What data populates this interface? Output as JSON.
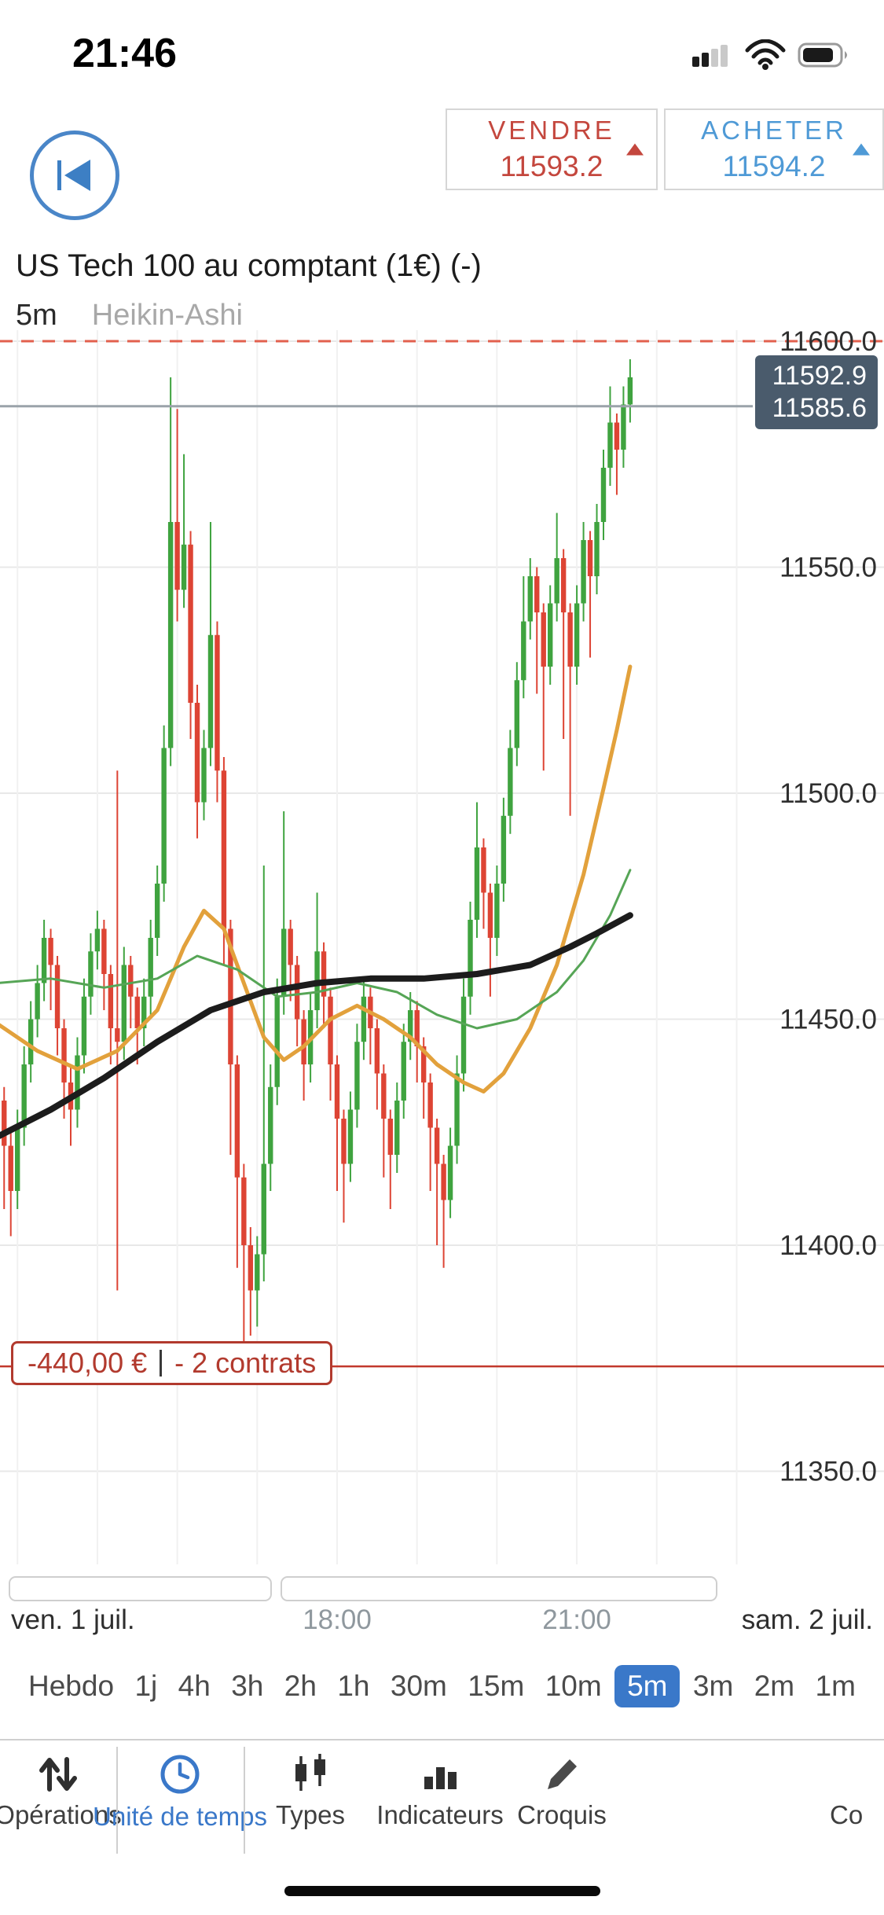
{
  "status_bar": {
    "time": "21:46",
    "icons": [
      "cellular-signal",
      "wifi",
      "battery"
    ]
  },
  "header": {
    "sell": {
      "label": "VENDRE",
      "price": "11593.2"
    },
    "buy": {
      "label": "ACHETER",
      "price": "11594.2"
    },
    "instrument_title": "US Tech 100 au comptant (1€) (-)",
    "interval_label": "5m",
    "chart_style_label": "Heikin-Ashi"
  },
  "chart_data": {
    "type": "candlestick",
    "style": "Heikin-Ashi",
    "interval": "5m",
    "start_hour": 13.75,
    "step_minutes": 5,
    "colors": {
      "up": "#3fa33f",
      "down": "#dd4434",
      "alert_line": "#e2604e",
      "current_line": "#9aa3aa",
      "position_line": "#c2392c"
    },
    "y_axis": {
      "min": 11350,
      "max": 11600,
      "step": 50,
      "ticks": [
        "11600.0",
        "11550.0",
        "11500.0",
        "11450.0",
        "11400.0",
        "11350.0"
      ]
    },
    "x_axis": {
      "labels": [
        {
          "text": "ven. 1 juil."
        },
        {
          "text": "18:00",
          "hour": 18
        },
        {
          "text": "21:00",
          "hour": 21
        },
        {
          "text": "sam. 2 juil."
        }
      ]
    },
    "lines": {
      "alert_level": 11600.0,
      "current_price": 11585.6,
      "position_level": 11373.2
    },
    "badge": [
      "11592.9",
      "11585.6"
    ],
    "position_label": {
      "pnl": "-440,00 €",
      "contracts": "- 2 contrats"
    },
    "candles": [
      [
        11442,
        11445,
        11418,
        11432
      ],
      [
        11432,
        11435,
        11408,
        11422
      ],
      [
        11422,
        11426,
        11402,
        11412
      ],
      [
        11412,
        11430,
        11408,
        11426
      ],
      [
        11426,
        11444,
        11422,
        11440
      ],
      [
        11440,
        11454,
        11436,
        11450
      ],
      [
        11450,
        11462,
        11446,
        11458
      ],
      [
        11458,
        11472,
        11454,
        11468
      ],
      [
        11468,
        11470,
        11452,
        11462
      ],
      [
        11462,
        11464,
        11442,
        11448
      ],
      [
        11448,
        11450,
        11428,
        11436
      ],
      [
        11436,
        11440,
        11422,
        11430
      ],
      [
        11430,
        11446,
        11426,
        11442
      ],
      [
        11442,
        11459,
        11438,
        11455
      ],
      [
        11455,
        11469,
        11451,
        11465
      ],
      [
        11465,
        11474,
        11461,
        11470
      ],
      [
        11470,
        11472,
        11452,
        11460
      ],
      [
        11460,
        11462,
        11440,
        11448
      ],
      [
        11448,
        11505,
        11390,
        11445
      ],
      [
        11445,
        11466,
        11441,
        11462
      ],
      [
        11462,
        11464,
        11448,
        11455
      ],
      [
        11455,
        11457,
        11440,
        11448
      ],
      [
        11448,
        11459,
        11444,
        11455
      ],
      [
        11455,
        11472,
        11451,
        11468
      ],
      [
        11468,
        11484,
        11464,
        11480
      ],
      [
        11480,
        11515,
        11476,
        11510
      ],
      [
        11510,
        11592,
        11506,
        11560
      ],
      [
        11560,
        11585,
        11538,
        11545
      ],
      [
        11545,
        11575,
        11541,
        11555
      ],
      [
        11555,
        11558,
        11512,
        11520
      ],
      [
        11520,
        11524,
        11490,
        11498
      ],
      [
        11498,
        11514,
        11494,
        11510
      ],
      [
        11510,
        11560,
        11506,
        11535
      ],
      [
        11535,
        11538,
        11498,
        11505
      ],
      [
        11505,
        11508,
        11462,
        11470
      ],
      [
        11470,
        11472,
        11420,
        11440
      ],
      [
        11440,
        11442,
        11395,
        11415
      ],
      [
        11415,
        11418,
        11376,
        11400
      ],
      [
        11400,
        11404,
        11380,
        11390
      ],
      [
        11390,
        11402,
        11382,
        11398
      ],
      [
        11398,
        11484,
        11392,
        11418
      ],
      [
        11418,
        11440,
        11412,
        11435
      ],
      [
        11435,
        11459,
        11431,
        11455
      ],
      [
        11455,
        11496,
        11451,
        11470
      ],
      [
        11470,
        11472,
        11454,
        11462
      ],
      [
        11462,
        11464,
        11444,
        11450
      ],
      [
        11450,
        11452,
        11432,
        11440
      ],
      [
        11440,
        11456,
        11436,
        11452
      ],
      [
        11452,
        11478,
        11448,
        11465
      ],
      [
        11465,
        11467,
        11448,
        11455
      ],
      [
        11455,
        11457,
        11432,
        11440
      ],
      [
        11440,
        11442,
        11412,
        11428
      ],
      [
        11428,
        11430,
        11405,
        11418
      ],
      [
        11418,
        11434,
        11414,
        11430
      ],
      [
        11430,
        11449,
        11426,
        11445
      ],
      [
        11445,
        11459,
        11441,
        11455
      ],
      [
        11455,
        11457,
        11440,
        11448
      ],
      [
        11448,
        11450,
        11430,
        11438
      ],
      [
        11438,
        11440,
        11415,
        11428
      ],
      [
        11428,
        11430,
        11408,
        11420
      ],
      [
        11420,
        11436,
        11416,
        11432
      ],
      [
        11432,
        11449,
        11428,
        11445
      ],
      [
        11445,
        11456,
        11441,
        11452
      ],
      [
        11452,
        11454,
        11436,
        11444
      ],
      [
        11444,
        11446,
        11428,
        11436
      ],
      [
        11436,
        11438,
        11412,
        11426
      ],
      [
        11426,
        11428,
        11400,
        11418
      ],
      [
        11418,
        11420,
        11395,
        11410
      ],
      [
        11410,
        11426,
        11406,
        11422
      ],
      [
        11422,
        11442,
        11418,
        11438
      ],
      [
        11438,
        11459,
        11434,
        11455
      ],
      [
        11455,
        11476,
        11451,
        11472
      ],
      [
        11472,
        11498,
        11468,
        11488
      ],
      [
        11488,
        11490,
        11470,
        11478
      ],
      [
        11478,
        11480,
        11455,
        11468
      ],
      [
        11468,
        11484,
        11464,
        11480
      ],
      [
        11480,
        11499,
        11476,
        11495
      ],
      [
        11495,
        11514,
        11491,
        11510
      ],
      [
        11510,
        11529,
        11506,
        11525
      ],
      [
        11525,
        11548,
        11521,
        11538
      ],
      [
        11538,
        11552,
        11534,
        11548
      ],
      [
        11548,
        11550,
        11522,
        11540
      ],
      [
        11540,
        11542,
        11505,
        11528
      ],
      [
        11528,
        11546,
        11524,
        11542
      ],
      [
        11542,
        11562,
        11538,
        11552
      ],
      [
        11552,
        11554,
        11512,
        11540
      ],
      [
        11540,
        11542,
        11495,
        11528
      ],
      [
        11528,
        11546,
        11524,
        11542
      ],
      [
        11542,
        11560,
        11538,
        11556
      ],
      [
        11556,
        11558,
        11530,
        11548
      ],
      [
        11548,
        11564,
        11544,
        11560
      ],
      [
        11560,
        11576,
        11556,
        11572
      ],
      [
        11572,
        11590,
        11568,
        11582
      ],
      [
        11582,
        11584,
        11566,
        11576
      ],
      [
        11576,
        11590,
        11572,
        11586
      ],
      [
        11586,
        11596,
        11582,
        11592
      ]
    ],
    "moving_averages": [
      {
        "name": "ma-fast-orange",
        "color": "#e2a13c",
        "width": 5,
        "points": [
          [
            0,
            11449
          ],
          [
            6,
            11443
          ],
          [
            12,
            11439
          ],
          [
            18,
            11443
          ],
          [
            24,
            11452
          ],
          [
            28,
            11466
          ],
          [
            31,
            11474
          ],
          [
            34,
            11470
          ],
          [
            37,
            11458
          ],
          [
            40,
            11446
          ],
          [
            43,
            11441
          ],
          [
            46,
            11444
          ],
          [
            50,
            11450
          ],
          [
            54,
            11453
          ],
          [
            58,
            11450
          ],
          [
            62,
            11446
          ],
          [
            66,
            11440
          ],
          [
            70,
            11436
          ],
          [
            73,
            11434
          ],
          [
            76,
            11438
          ],
          [
            80,
            11448
          ],
          [
            84,
            11462
          ],
          [
            88,
            11482
          ],
          [
            91,
            11501
          ],
          [
            93,
            11514
          ],
          [
            95,
            11528
          ]
        ]
      },
      {
        "name": "ma-mid-green",
        "color": "#56a556",
        "width": 3,
        "points": [
          [
            0,
            11458
          ],
          [
            8,
            11459
          ],
          [
            16,
            11457
          ],
          [
            24,
            11459
          ],
          [
            30,
            11464
          ],
          [
            36,
            11461
          ],
          [
            42,
            11455
          ],
          [
            48,
            11456
          ],
          [
            54,
            11458
          ],
          [
            60,
            11456
          ],
          [
            66,
            11451
          ],
          [
            72,
            11448
          ],
          [
            78,
            11450
          ],
          [
            84,
            11456
          ],
          [
            88,
            11463
          ],
          [
            92,
            11473
          ],
          [
            95,
            11483
          ]
        ]
      },
      {
        "name": "ma-slow-black",
        "color": "#1c1c1c",
        "width": 8,
        "points": [
          [
            0,
            11424
          ],
          [
            8,
            11430
          ],
          [
            16,
            11437
          ],
          [
            24,
            11445
          ],
          [
            32,
            11452
          ],
          [
            40,
            11456
          ],
          [
            48,
            11458
          ],
          [
            56,
            11459
          ],
          [
            64,
            11459
          ],
          [
            72,
            11460
          ],
          [
            80,
            11462
          ],
          [
            86,
            11466
          ],
          [
            90,
            11469
          ],
          [
            95,
            11473
          ]
        ]
      }
    ]
  },
  "timeframes": {
    "items": [
      "Hebdo",
      "1j",
      "4h",
      "3h",
      "2h",
      "1h",
      "30m",
      "15m",
      "10m",
      "5m",
      "3m",
      "2m",
      "1m"
    ],
    "selected": "5m"
  },
  "toolbar": {
    "items": [
      {
        "label": "Opérations",
        "icon": "up-down-arrows"
      },
      {
        "label": "Unité de temps",
        "icon": "clock",
        "active": true
      },
      {
        "label": "Types",
        "icon": "candlesticks"
      },
      {
        "label": "Indicateurs",
        "icon": "bar-chart"
      },
      {
        "label": "Croquis",
        "icon": "pencil"
      },
      {
        "label": "Co",
        "icon": "truncated"
      }
    ]
  },
  "colors": {
    "accent_blue": "#3a78c9",
    "sell_red": "#c4473e",
    "buy_blue": "#4f9ad6",
    "badge_bg": "#4a5b6c"
  }
}
